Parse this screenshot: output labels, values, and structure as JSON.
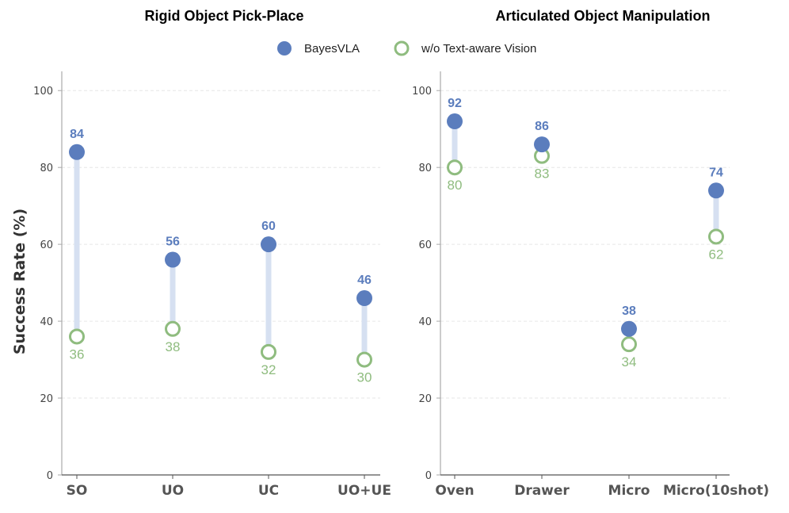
{
  "colors": {
    "with": "#5b7dbd",
    "without": "#8fbc7f",
    "connector": "#d6e0f1",
    "axis": "#aaaaaa",
    "grid": "#e6e6e6"
  },
  "legend": {
    "with_label": "BayesVLA",
    "without_label": "w/o Text-aware Vision"
  },
  "ylabel": "Success Rate (%)",
  "chart_data": [
    {
      "type": "scatter",
      "title": "Rigid Object Pick-Place",
      "categories": [
        "SO",
        "UO",
        "UC",
        "UO+UE"
      ],
      "ylim": [
        0,
        105
      ],
      "yticks": [
        0,
        20,
        40,
        60,
        80,
        100
      ],
      "grid": true,
      "series": [
        {
          "name": "BayesVLA",
          "values": [
            84,
            56,
            60,
            46
          ]
        },
        {
          "name": "w/o Text-aware Vision",
          "values": [
            36,
            38,
            32,
            30
          ]
        }
      ]
    },
    {
      "type": "scatter",
      "title": "Articulated Object Manipulation",
      "categories": [
        "Oven",
        "Drawer",
        "Micro",
        "Micro(10shot)"
      ],
      "ylim": [
        0,
        105
      ],
      "yticks": [
        0,
        20,
        40,
        60,
        80,
        100
      ],
      "grid": true,
      "series": [
        {
          "name": "BayesVLA",
          "values": [
            92,
            86,
            38,
            74
          ]
        },
        {
          "name": "w/o Text-aware Vision",
          "values": [
            80,
            83,
            34,
            62
          ]
        }
      ]
    }
  ]
}
